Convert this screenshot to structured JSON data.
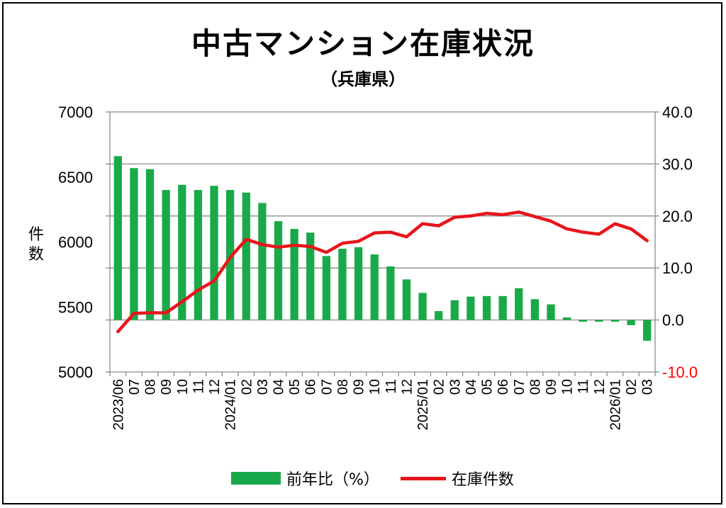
{
  "title": "中古マンション在庫状況",
  "subtitle": "（兵庫県）",
  "chart_data": {
    "type": "bar+line",
    "title": "中古マンション在庫状況",
    "subtitle": "（兵庫県）",
    "ylabel": "件数",
    "ylabel_chars": [
      "件",
      "数"
    ],
    "left_axis": {
      "min": 5000,
      "max": 7000,
      "ticks": [
        "5000",
        "5500",
        "6000",
        "6500",
        "7000"
      ]
    },
    "right_axis": {
      "min": -10,
      "max": 40,
      "ticks": [
        "-10.0",
        "0.0",
        "10.0",
        "20.0",
        "30.0",
        "40.0"
      ],
      "negative_color": "#ff0000"
    },
    "x_labels": [
      "2023/06",
      "07",
      "08",
      "09",
      "10",
      "11",
      "12",
      "2024/01",
      "02",
      "03",
      "04",
      "05",
      "06",
      "07",
      "08",
      "09",
      "10",
      "11",
      "12",
      "2025/01",
      "02",
      "03",
      "04",
      "05",
      "06",
      "07",
      "08",
      "09",
      "10",
      "11",
      "12",
      "2026/01",
      "02",
      "03"
    ],
    "series": [
      {
        "name": "前年比（%）",
        "type": "bar",
        "axis": "right",
        "color": "#1aa94a",
        "values": [
          31.5,
          29.2,
          29.0,
          25.0,
          26.0,
          25.0,
          25.8,
          25.0,
          24.5,
          22.5,
          19.0,
          17.5,
          16.8,
          12.3,
          13.7,
          14.0,
          12.6,
          10.3,
          7.8,
          5.2,
          1.7,
          3.8,
          4.5,
          4.6,
          4.6,
          6.1,
          4.0,
          3.0,
          0.5,
          -0.3,
          -0.1,
          -0.2,
          -1.0,
          -4.0
        ]
      },
      {
        "name": "在庫件数",
        "type": "line",
        "axis": "left",
        "color": "#e8141c",
        "values": [
          5310,
          5450,
          5455,
          5455,
          5540,
          5630,
          5700,
          5880,
          6020,
          5980,
          5960,
          5975,
          5965,
          5920,
          5990,
          6005,
          6070,
          6075,
          6040,
          6140,
          6125,
          6190,
          6200,
          6220,
          6210,
          6230,
          6195,
          6160,
          6100,
          6075,
          6060,
          6140,
          6100,
          6010
        ]
      }
    ],
    "legend": [
      "前年比（%）",
      "在庫件数"
    ],
    "legend_position": "bottom",
    "grid": true
  }
}
